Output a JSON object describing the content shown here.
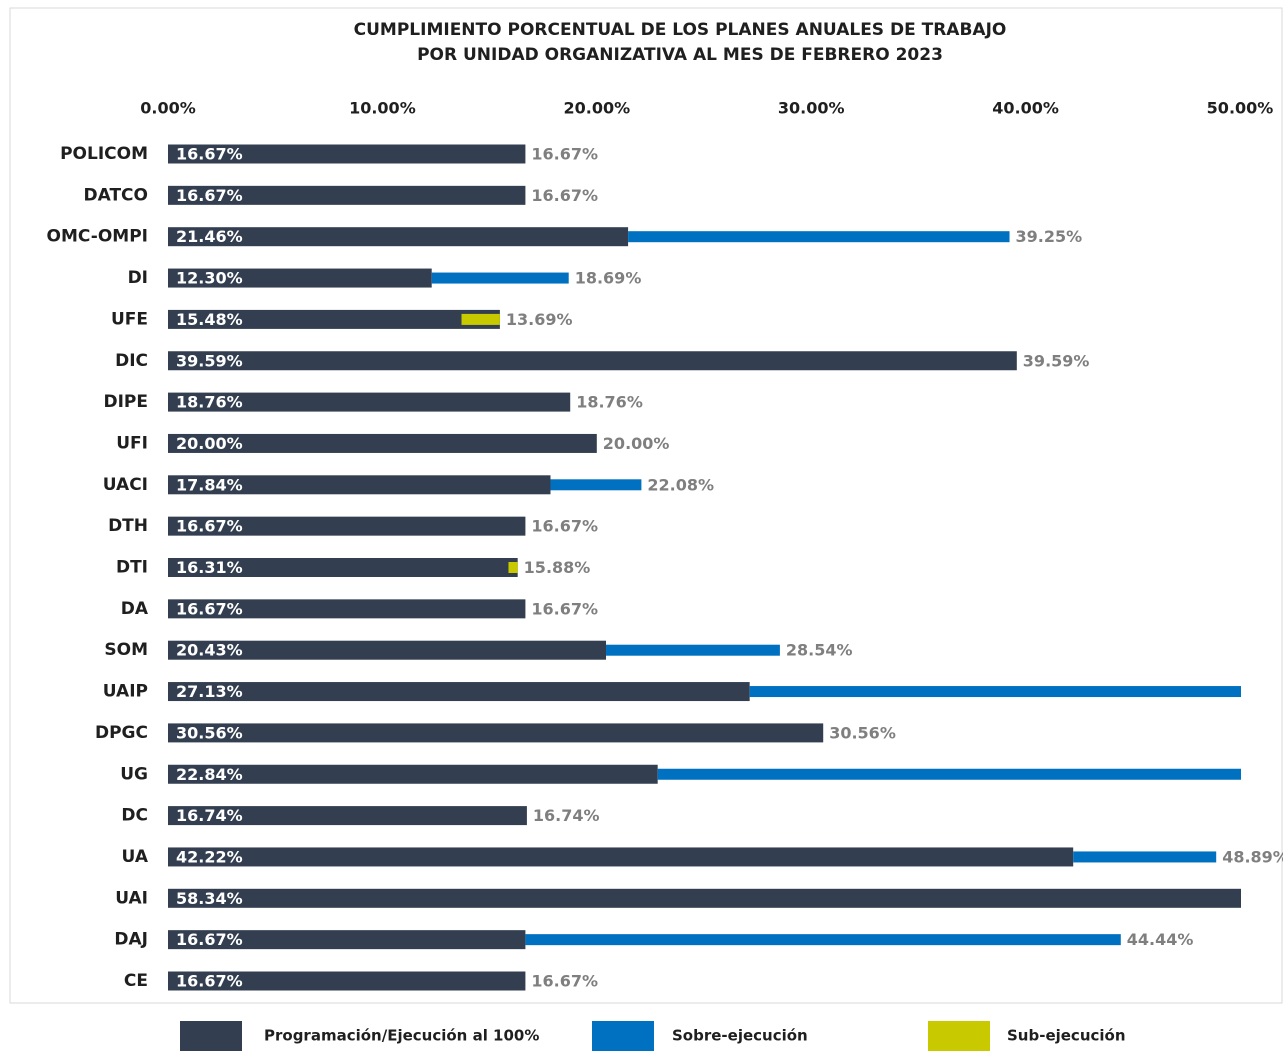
{
  "chart_data": {
    "type": "bar",
    "orientation": "horizontal",
    "title": [
      "CUMPLIMIENTO PORCENTUAL DE LOS PLANES ANUALES DE TRABAJO",
      "POR UNIDAD ORGANIZATIVA AL MES DE FEBRERO 2023"
    ],
    "categories": [
      "POLICOM",
      "DATCO",
      "OMC-OMPI",
      "DI",
      "UFE",
      "DIC",
      "DIPE",
      "UFI",
      "UACI",
      "DTH",
      "DTI",
      "DA",
      "SOM",
      "UAIP",
      "DPGC",
      "UG",
      "DC",
      "UA",
      "UAI",
      "DAJ",
      "CE"
    ],
    "xlim": [
      0,
      50
    ],
    "xticks": [
      {
        "value": 0,
        "label": "0.00%"
      },
      {
        "value": 10,
        "label": "10.00%"
      },
      {
        "value": 20,
        "label": "20.00%"
      },
      {
        "value": 30,
        "label": "30.00%"
      },
      {
        "value": 40,
        "label": "40.00%"
      },
      {
        "value": 50,
        "label": "50.00%"
      }
    ],
    "series": [
      {
        "name": "Programación/Ejecución al 100%",
        "color": "#333f50",
        "values": [
          16.67,
          16.67,
          21.46,
          12.3,
          15.48,
          39.59,
          18.76,
          20.0,
          17.84,
          16.67,
          16.31,
          16.67,
          20.43,
          27.13,
          30.56,
          22.84,
          16.74,
          42.22,
          58.34,
          16.67,
          16.67
        ],
        "value_labels": [
          "16.67%",
          "16.67%",
          "21.46%",
          "12.30%",
          "15.48%",
          "39.59%",
          "18.76%",
          "20.00%",
          "17.84%",
          "16.67%",
          "16.31%",
          "16.67%",
          "20.43%",
          "27.13%",
          "30.56%",
          "22.84%",
          "16.74%",
          "42.22%",
          "58.34%",
          "16.67%",
          "16.67%"
        ]
      },
      {
        "name": "Sobre-ejecución",
        "color": "#0070c0"
      },
      {
        "name": "Sub-ejecución",
        "color": "#c9c900"
      }
    ],
    "executed": {
      "values": [
        16.67,
        16.67,
        39.25,
        18.69,
        13.69,
        39.59,
        18.76,
        20.0,
        22.08,
        16.67,
        15.88,
        16.67,
        28.54,
        55,
        30.56,
        55,
        16.74,
        48.89,
        58.34,
        44.44,
        16.67
      ],
      "value_labels": [
        "16.67%",
        "16.67%",
        "39.25%",
        "18.69%",
        "13.69%",
        "39.59%",
        "18.76%",
        "20.00%",
        "22.08%",
        "16.67%",
        "15.88%",
        "16.67%",
        "28.54%",
        null,
        "30.56%",
        null,
        "16.74%",
        "48.89%",
        null,
        "44.44%",
        "16.67%"
      ]
    }
  }
}
